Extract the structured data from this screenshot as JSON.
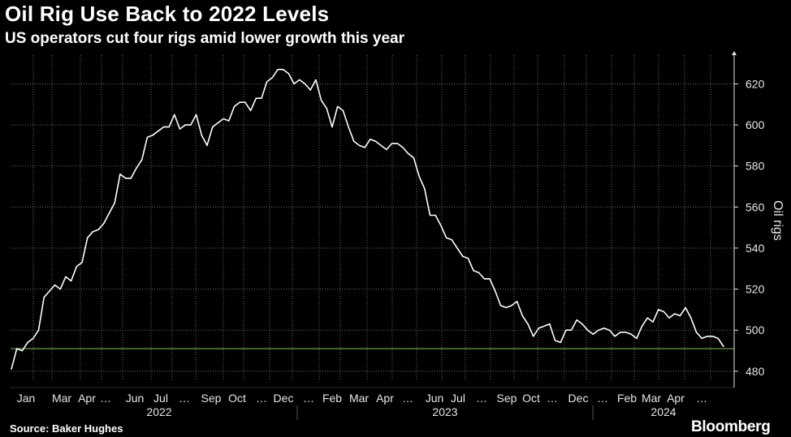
{
  "header": {
    "title": "Oil Rig Use Back to 2022 Levels",
    "subtitle": "US operators cut four rigs amid lower growth this year"
  },
  "footer": {
    "source": "Source: Baker Hughes",
    "brand": "Bloomberg"
  },
  "colors": {
    "background": "#000000",
    "line": "#ffffff",
    "reference_line": "#5fa34a",
    "grid": "#6b6b6b",
    "text": "#e6e6e6"
  },
  "chart_data": {
    "type": "line",
    "title": "Oil Rig Use Back to 2022 Levels",
    "subtitle": "US operators cut four rigs amid lower growth this year",
    "ylabel": "Oil rigs",
    "ylim": [
      476,
      634
    ],
    "yticks": [
      480,
      500,
      520,
      540,
      560,
      580,
      600,
      620
    ],
    "grid": true,
    "x_axis": {
      "month_labels": [
        "Jan",
        "Mar",
        "Apr",
        "Jun",
        "Jul",
        "Sep",
        "Oct",
        "Dec",
        "Feb",
        "Mar",
        "Apr",
        "Jun",
        "Jul",
        "Sep",
        "Oct",
        "Dec",
        "Feb",
        "Mar",
        "Apr"
      ],
      "year_labels": [
        "2022",
        "2023",
        "2024"
      ]
    },
    "reference_line": {
      "value": 491
    },
    "series": [
      {
        "values": [
          481,
          491,
          490,
          494,
          496,
          500,
          516,
          519,
          522,
          520,
          526,
          524,
          531,
          533,
          545,
          548,
          549,
          552,
          557,
          562,
          576,
          574,
          574,
          579,
          583,
          594,
          595,
          597,
          599,
          599,
          605,
          598,
          600,
          600,
          605,
          595,
          590,
          599,
          601,
          603,
          602,
          609,
          611,
          611,
          607,
          613,
          613,
          621,
          623,
          627,
          627,
          625,
          620,
          622,
          620,
          617,
          622,
          612,
          608,
          599,
          609,
          607,
          599,
          592,
          590,
          589,
          593,
          592,
          590,
          588,
          591,
          591,
          589,
          586,
          584,
          575,
          569,
          556,
          556,
          551,
          545,
          544,
          540,
          536,
          535,
          529,
          528,
          525,
          525,
          519,
          512,
          511,
          512,
          514,
          507,
          503,
          497,
          501,
          502,
          503,
          495,
          494,
          500,
          500,
          505,
          503,
          500,
          498,
          500,
          501,
          500,
          497,
          499,
          499,
          498,
          496,
          502,
          506,
          504,
          510,
          509,
          506,
          508,
          507,
          511,
          506,
          499,
          496,
          497,
          497,
          496,
          492
        ]
      }
    ]
  }
}
